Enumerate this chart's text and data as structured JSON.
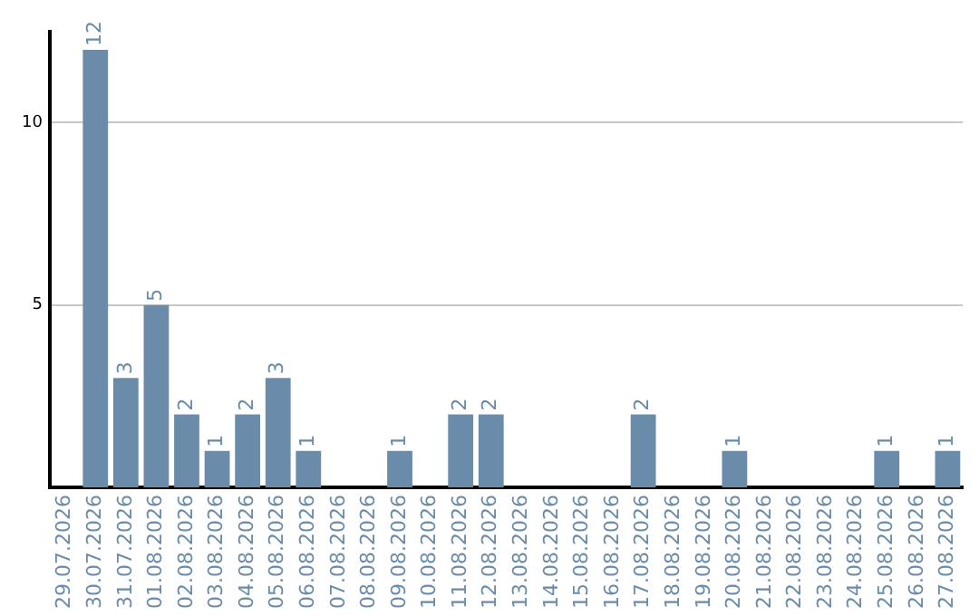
{
  "chart_data": {
    "type": "bar",
    "categories": [
      "29.07.2026",
      "30.07.2026",
      "31.07.2026",
      "01.08.2026",
      "02.08.2026",
      "03.08.2026",
      "04.08.2026",
      "05.08.2026",
      "06.08.2026",
      "07.08.2026",
      "08.08.2026",
      "09.08.2026",
      "10.08.2026",
      "11.08.2026",
      "12.08.2026",
      "13.08.2026",
      "14.08.2026",
      "15.08.2026",
      "16.08.2026",
      "17.08.2026",
      "18.08.2026",
      "19.08.2026",
      "20.08.2026",
      "21.08.2026",
      "22.08.2026",
      "23.08.2026",
      "24.08.2026",
      "25.08.2026",
      "26.08.2026",
      "27.08.2026"
    ],
    "values": [
      0,
      12,
      3,
      5,
      2,
      1,
      2,
      3,
      1,
      0,
      0,
      1,
      0,
      2,
      2,
      0,
      0,
      0,
      0,
      2,
      0,
      0,
      1,
      0,
      0,
      0,
      0,
      1,
      0,
      1
    ],
    "value_labels": [
      null,
      "12",
      "3",
      "5",
      "2",
      "1",
      "2",
      "3",
      "1",
      null,
      null,
      "1",
      null,
      "2",
      "2",
      null,
      null,
      null,
      null,
      "2",
      null,
      null,
      "1",
      null,
      null,
      null,
      null,
      "1",
      null,
      "1"
    ],
    "color": "#6a8caa",
    "ylim": [
      0,
      12.5
    ],
    "yticks": [
      5,
      10
    ],
    "grid": "y",
    "legend": false
  }
}
